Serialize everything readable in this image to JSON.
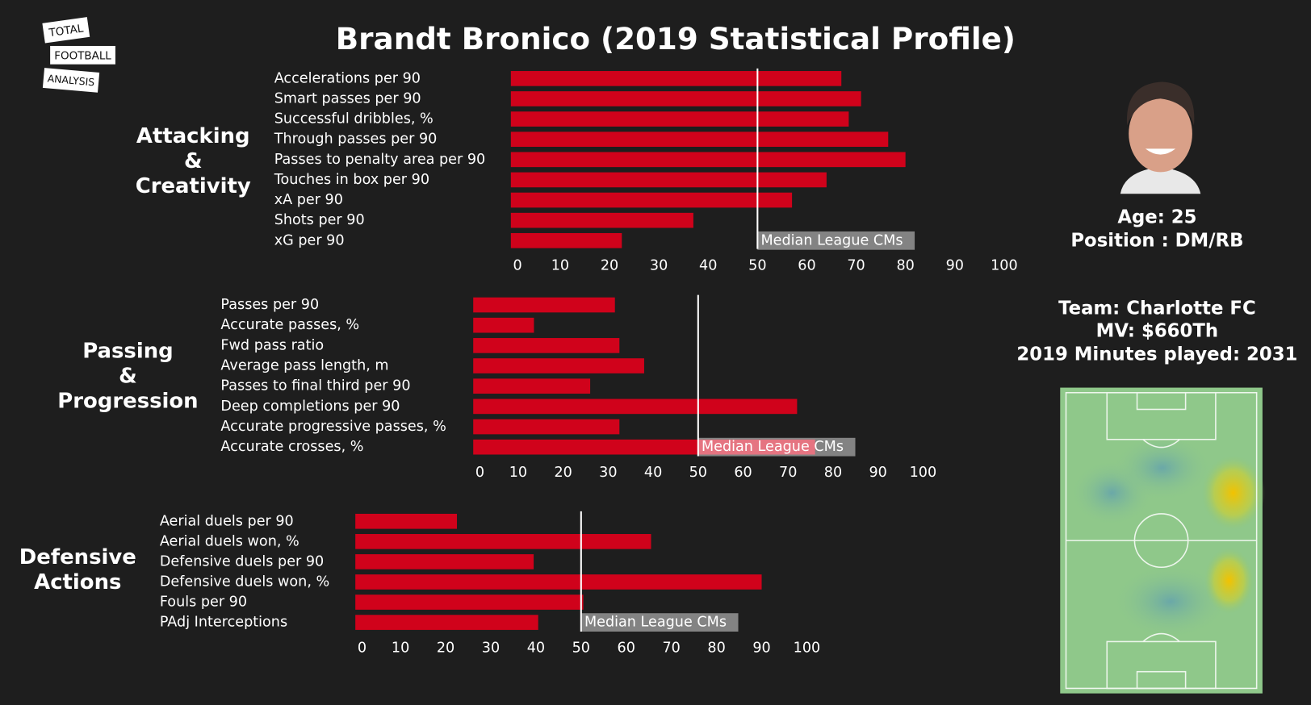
{
  "title": "Brandt Bronico (2019 Statistical Profile)",
  "logo": [
    "TOTAL",
    "FOOTBALL",
    "ANALYSIS"
  ],
  "player": {
    "age": "Age: 25",
    "position": "Position : DM/RB",
    "team": "Team: Charlotte FC",
    "market_value": "MV: $660Th",
    "minutes": "2019 Minutes played: 2031"
  },
  "chart_data": [
    {
      "type": "bar",
      "orientation": "horizontal",
      "title": "Attacking\n&\nCreativity",
      "color": "#d0021b",
      "categories": [
        "Accelerations per 90",
        "Smart passes per 90",
        "Successful dribbles, %",
        "Through passes per 90",
        "Passes to penalty area per 90",
        "Touches in box per 90",
        "xA per 90",
        "Shots per 90",
        "xG per 90"
      ],
      "values": [
        67,
        71,
        68.5,
        76.5,
        80,
        64,
        57,
        37,
        22.5
      ],
      "xlim": [
        0,
        100
      ],
      "xticks": [
        0,
        10,
        20,
        30,
        40,
        50,
        60,
        70,
        80,
        90,
        100
      ],
      "median": 50,
      "median_label": "Median League CMs"
    },
    {
      "type": "bar",
      "orientation": "horizontal",
      "title": "Passing\n&\nProgression",
      "color": "#d0021b",
      "categories": [
        "Passes per 90",
        "Accurate passes, %",
        "Fwd pass ratio",
        "Average pass length, m",
        "Passes to final third per 90",
        "Deep completions per 90",
        "Accurate progressive passes, %",
        "Accurate crosses, %"
      ],
      "values": [
        31.5,
        13.5,
        32.5,
        38,
        26,
        72,
        32.5,
        76
      ],
      "xlim": [
        0,
        100
      ],
      "xticks": [
        0,
        10,
        20,
        30,
        40,
        50,
        60,
        70,
        80,
        90,
        100
      ],
      "median": 50,
      "median_label": "Median League CMs"
    },
    {
      "type": "bar",
      "orientation": "horizontal",
      "title": "Defensive\nActions",
      "color": "#d0021b",
      "categories": [
        "Aerial duels per 90",
        "Aerial duels won, %",
        "Defensive duels per 90",
        "Defensive duels won, %",
        "Fouls per 90",
        "PAdj Interceptions"
      ],
      "values": [
        22.5,
        65.5,
        39.5,
        90,
        50.5,
        40.5
      ],
      "xlim": [
        0,
        100
      ],
      "xticks": [
        0,
        10,
        20,
        30,
        40,
        50,
        60,
        70,
        80,
        90,
        100
      ],
      "median": 50,
      "median_label": "Median League CMs"
    }
  ]
}
